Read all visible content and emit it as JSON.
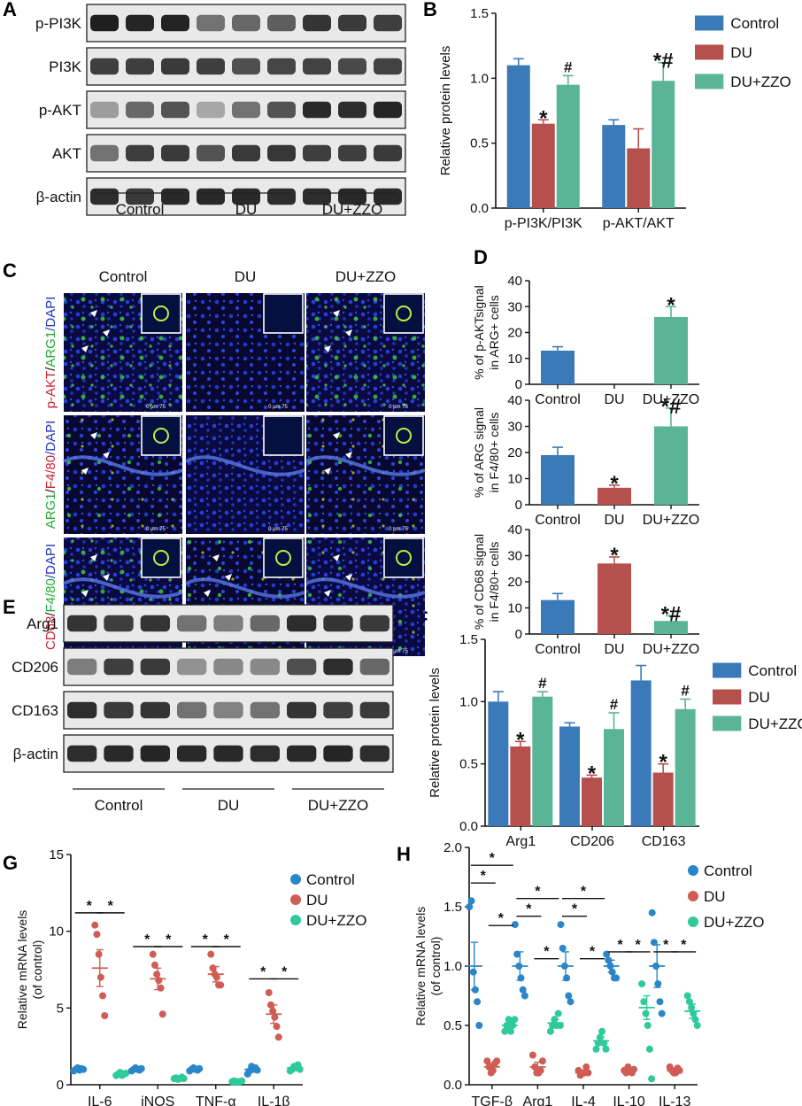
{
  "colors": {
    "control": "#3a7ab8",
    "du": "#b5504d",
    "duzzo": "#5ab596",
    "axis": "#111111",
    "dot_control": "#2a86c8",
    "dot_du": "#d05d55",
    "dot_duzzo": "#2fc99c"
  },
  "panels": {
    "A": {
      "letter": "A",
      "rows": [
        "p-PI3K",
        "PI3K",
        "p-AKT",
        "AKT",
        "β-actin"
      ],
      "groups": [
        "Control",
        "DU",
        "DU+ZZO"
      ]
    },
    "B": {
      "letter": "B"
    },
    "C": {
      "letter": "C",
      "columns": [
        "Control",
        "DU",
        "DU+ZZO"
      ],
      "row_labels": [
        [
          {
            "text": "p-AKT",
            "color": "#cc2233"
          },
          {
            "text": "/",
            "color": "#111111"
          },
          {
            "text": "ARG1",
            "color": "#22aa33"
          },
          {
            "text": "/DAPI",
            "color": "#2233bb"
          }
        ],
        [
          {
            "text": "ARG1",
            "color": "#22aa33"
          },
          {
            "text": "/",
            "color": "#111111"
          },
          {
            "text": "F4/80",
            "color": "#cc2233"
          },
          {
            "text": "/DAPI",
            "color": "#2233bb"
          }
        ],
        [
          {
            "text": "CD68",
            "color": "#cc2233"
          },
          {
            "text": "/",
            "color": "#111111"
          },
          {
            "text": "F4/80",
            "color": "#22aa33"
          },
          {
            "text": "/DAPI",
            "color": "#2233bb"
          }
        ]
      ],
      "scale_text": "0    μm    75"
    },
    "D": {
      "letter": "D"
    },
    "E": {
      "letter": "E",
      "rows": [
        "Arg1",
        "CD206",
        "CD163",
        "β-actin"
      ],
      "groups": [
        "Control",
        "DU",
        "DU+ZZO"
      ]
    },
    "F": {
      "letter": "F"
    },
    "G": {
      "letter": "G"
    },
    "H": {
      "letter": "H"
    }
  },
  "chart_data": [
    {
      "id": "B",
      "type": "bar",
      "ylabel": "Relative  protein  levels",
      "ylim": [
        0,
        1.5
      ],
      "yticks": [
        "0.0",
        "0.5",
        "1.0",
        "1.5"
      ],
      "categories": [
        "p-PI3K/PI3K",
        "p-AKT/AKT"
      ],
      "legend": [
        "Control",
        "DU",
        "DU+ZZO"
      ],
      "legend_position": "right",
      "series": [
        {
          "name": "Control",
          "values": [
            1.1,
            0.64
          ],
          "errors": [
            0.05,
            0.04
          ],
          "sig": [
            "",
            ""
          ]
        },
        {
          "name": "DU",
          "values": [
            0.65,
            0.46
          ],
          "errors": [
            0.03,
            0.15
          ],
          "sig": [
            "*",
            ""
          ]
        },
        {
          "name": "DU+ZZO",
          "values": [
            0.95,
            0.98
          ],
          "errors": [
            0.07,
            0.14
          ],
          "sig": [
            "#",
            "*#"
          ]
        }
      ]
    },
    {
      "id": "D1",
      "type": "bar",
      "ylabel": [
        "% of p-AKTsignal",
        "in ARG+ cells"
      ],
      "ylim": [
        0,
        40
      ],
      "yticks": [
        "0",
        "10",
        "20",
        "30",
        "40"
      ],
      "categories": [
        "Control",
        "DU",
        "DU+ZZO"
      ],
      "values": [
        13,
        0,
        26
      ],
      "errors": [
        1.5,
        0,
        4
      ],
      "sig": [
        "",
        "",
        "*"
      ]
    },
    {
      "id": "D2",
      "type": "bar",
      "ylabel": [
        "% of ARG signal",
        "in F4/80+ cells"
      ],
      "ylim": [
        0,
        40
      ],
      "yticks": [
        "0",
        "10",
        "20",
        "30",
        "40"
      ],
      "categories": [
        "Control",
        "DU",
        "DU+ZZO"
      ],
      "values": [
        19,
        6.5,
        30
      ],
      "errors": [
        3,
        1,
        7
      ],
      "sig": [
        "",
        "*",
        "*#"
      ]
    },
    {
      "id": "D3",
      "type": "bar",
      "ylabel": [
        "% of CD68 signal",
        "in F4/80+ cells"
      ],
      "ylim": [
        0,
        40
      ],
      "yticks": [
        "0",
        "10",
        "20",
        "30",
        "40"
      ],
      "categories": [
        "Control",
        "DU",
        "DU+ZZO"
      ],
      "values": [
        13,
        27,
        5
      ],
      "errors": [
        2.5,
        2.5,
        2
      ],
      "sig": [
        "",
        "*",
        "*#"
      ]
    },
    {
      "id": "F",
      "type": "bar",
      "ylabel": "Relative  protein  levels",
      "ylim": [
        0,
        1.5
      ],
      "yticks": [
        "0.0",
        "0.5",
        "1.0",
        "1.5"
      ],
      "categories": [
        "Arg1",
        "CD206",
        "CD163"
      ],
      "legend": [
        "Control",
        "DU",
        "DU+ZZO"
      ],
      "legend_position": "right",
      "series": [
        {
          "name": "Control",
          "values": [
            1.0,
            0.8,
            1.17
          ],
          "errors": [
            0.08,
            0.03,
            0.12
          ],
          "sig": [
            "",
            "",
            ""
          ]
        },
        {
          "name": "DU",
          "values": [
            0.64,
            0.39,
            0.43
          ],
          "errors": [
            0.04,
            0.02,
            0.07
          ],
          "sig": [
            "*",
            "*",
            "*"
          ]
        },
        {
          "name": "DU+ZZO",
          "values": [
            1.04,
            0.78,
            0.94
          ],
          "errors": [
            0.04,
            0.13,
            0.08
          ],
          "sig": [
            "#",
            "#",
            "#"
          ]
        }
      ]
    },
    {
      "id": "G",
      "type": "scatter",
      "ylabel": [
        "Relative  mRNA  levels",
        "(of control)"
      ],
      "ylim": [
        0,
        15
      ],
      "yticks": [
        "0",
        "5",
        "10",
        "15"
      ],
      "categories": [
        "IL-6",
        "iNOS",
        "TNF-α",
        "IL-1β"
      ],
      "legend": [
        "Control",
        "DU",
        "DU+ZZO"
      ],
      "legend_position": "top-right",
      "series": [
        {
          "name": "Control",
          "means": [
            1.0,
            1.0,
            1.0,
            1.0
          ],
          "sems": [
            0.05,
            0.05,
            0.05,
            0.1
          ],
          "points": [
            [
              0.9,
              1.0,
              1.1,
              0.95,
              1.05,
              1.0
            ],
            [
              0.9,
              1.0,
              1.1,
              1.0,
              0.95,
              1.05
            ],
            [
              0.9,
              1.0,
              1.1,
              1.0,
              0.95,
              1.05
            ],
            [
              0.7,
              0.9,
              1.2,
              1.0,
              1.1,
              0.95
            ]
          ]
        },
        {
          "name": "DU",
          "means": [
            7.6,
            6.9,
            7.2,
            4.6
          ],
          "sems": [
            1.2,
            0.7,
            0.5,
            0.6
          ],
          "points": [
            [
              10.4,
              9.8,
              8.5,
              7.0,
              5.8,
              4.5
            ],
            [
              8.5,
              7.8,
              7.2,
              6.8,
              6.3,
              4.6
            ],
            [
              8.5,
              7.6,
              7.2,
              7.0,
              6.5,
              6.5
            ],
            [
              6.0,
              5.2,
              4.8,
              4.4,
              3.8,
              3.1
            ]
          ]
        },
        {
          "name": "DU+ZZO",
          "means": [
            0.7,
            0.4,
            0.2,
            1.1
          ],
          "sems": [
            0.05,
            0.05,
            0.03,
            0.1
          ],
          "points": [
            [
              0.6,
              0.7,
              0.8,
              0.6,
              0.7,
              0.75
            ],
            [
              0.4,
              0.45,
              0.35,
              0.4,
              0.5,
              0.4
            ],
            [
              0.2,
              0.25,
              0.15,
              0.2,
              0.2,
              0.25
            ],
            [
              0.9,
              1.0,
              1.2,
              1.1,
              1.3,
              1.0
            ]
          ]
        }
      ],
      "sig_brackets": [
        {
          "cat": 0,
          "pairs": [
            [
              0,
              1
            ],
            [
              1,
              2
            ]
          ],
          "y": 11.2
        },
        {
          "cat": 1,
          "pairs": [
            [
              0,
              1
            ],
            [
              1,
              2
            ]
          ],
          "y": 9.0
        },
        {
          "cat": 2,
          "pairs": [
            [
              0,
              1
            ],
            [
              1,
              2
            ]
          ],
          "y": 9.0
        },
        {
          "cat": 3,
          "pairs": [
            [
              0,
              1
            ],
            [
              1,
              2
            ]
          ],
          "y": 6.9
        }
      ]
    },
    {
      "id": "H",
      "type": "scatter",
      "ylabel": [
        "Relative  mRNA  levels",
        "(of control)"
      ],
      "ylim": [
        0,
        2.0
      ],
      "yticks": [
        "0.0",
        "0.5",
        "1.0",
        "1.5",
        "2.0"
      ],
      "categories": [
        "TGF-β",
        "Arg1",
        "IL-4",
        "IL-10",
        "IL-13"
      ],
      "legend": [
        "Control",
        "DU",
        "DU+ZZO"
      ],
      "legend_position": "top-right",
      "series": [
        {
          "name": "Control",
          "means": [
            1.0,
            1.0,
            1.0,
            1.0,
            1.0
          ],
          "sems": [
            0.2,
            0.12,
            0.12,
            0.05,
            0.18
          ],
          "points": [
            [
              1.5,
              1.55,
              0.95,
              0.8,
              0.7,
              0.5
            ],
            [
              1.35,
              1.1,
              1.0,
              0.9,
              0.8,
              0.75
            ],
            [
              1.35,
              1.15,
              1.0,
              0.9,
              0.75,
              0.7
            ],
            [
              1.1,
              1.05,
              1.0,
              0.95,
              0.9,
              0.9
            ],
            [
              1.45,
              1.2,
              1.0,
              0.85,
              0.7,
              0.6
            ]
          ]
        },
        {
          "name": "DU",
          "means": [
            0.15,
            0.15,
            0.1,
            0.12,
            0.12
          ],
          "sems": [
            0.03,
            0.04,
            0.02,
            0.02,
            0.02
          ],
          "points": [
            [
              0.2,
              0.15,
              0.1,
              0.12,
              0.18,
              0.2
            ],
            [
              0.25,
              0.15,
              0.1,
              0.1,
              0.12,
              0.2
            ],
            [
              0.12,
              0.08,
              0.1,
              0.1,
              0.15,
              0.1
            ],
            [
              0.12,
              0.1,
              0.15,
              0.12,
              0.1,
              0.13
            ],
            [
              0.15,
              0.12,
              0.1,
              0.1,
              0.14,
              0.12
            ]
          ]
        },
        {
          "name": "DU+ZZO",
          "means": [
            0.5,
            0.52,
            0.37,
            0.65,
            0.62
          ],
          "sems": [
            0.03,
            0.03,
            0.03,
            0.1,
            0.06
          ],
          "points": [
            [
              0.45,
              0.5,
              0.55,
              0.45,
              0.5,
              0.55
            ],
            [
              0.45,
              0.5,
              0.55,
              0.5,
              0.6,
              0.5
            ],
            [
              0.3,
              0.35,
              0.4,
              0.45,
              0.35,
              0.3
            ],
            [
              0.85,
              0.7,
              0.6,
              0.5,
              0.3,
              0.05
            ],
            [
              0.75,
              0.7,
              0.65,
              0.6,
              0.55,
              0.5
            ]
          ]
        }
      ],
      "sig_brackets": [
        {
          "cat": 0,
          "pairs": [
            [
              0,
              1
            ],
            [
              1,
              2
            ],
            [
              0,
              2
            ]
          ],
          "y": 1.7
        },
        {
          "cat": 1,
          "pairs": [
            [
              0,
              1
            ],
            [
              1,
              2
            ],
            [
              0,
              2
            ]
          ],
          "y": 1.42
        },
        {
          "cat": 2,
          "pairs": [
            [
              0,
              1
            ],
            [
              1,
              2
            ],
            [
              0,
              2
            ]
          ],
          "y": 1.42
        },
        {
          "cat": 3,
          "pairs": [
            [
              0,
              1
            ],
            [
              1,
              2
            ]
          ],
          "y": 1.12
        },
        {
          "cat": 4,
          "pairs": [
            [
              0,
              1
            ],
            [
              1,
              2
            ]
          ],
          "y": 1.12
        }
      ]
    }
  ]
}
